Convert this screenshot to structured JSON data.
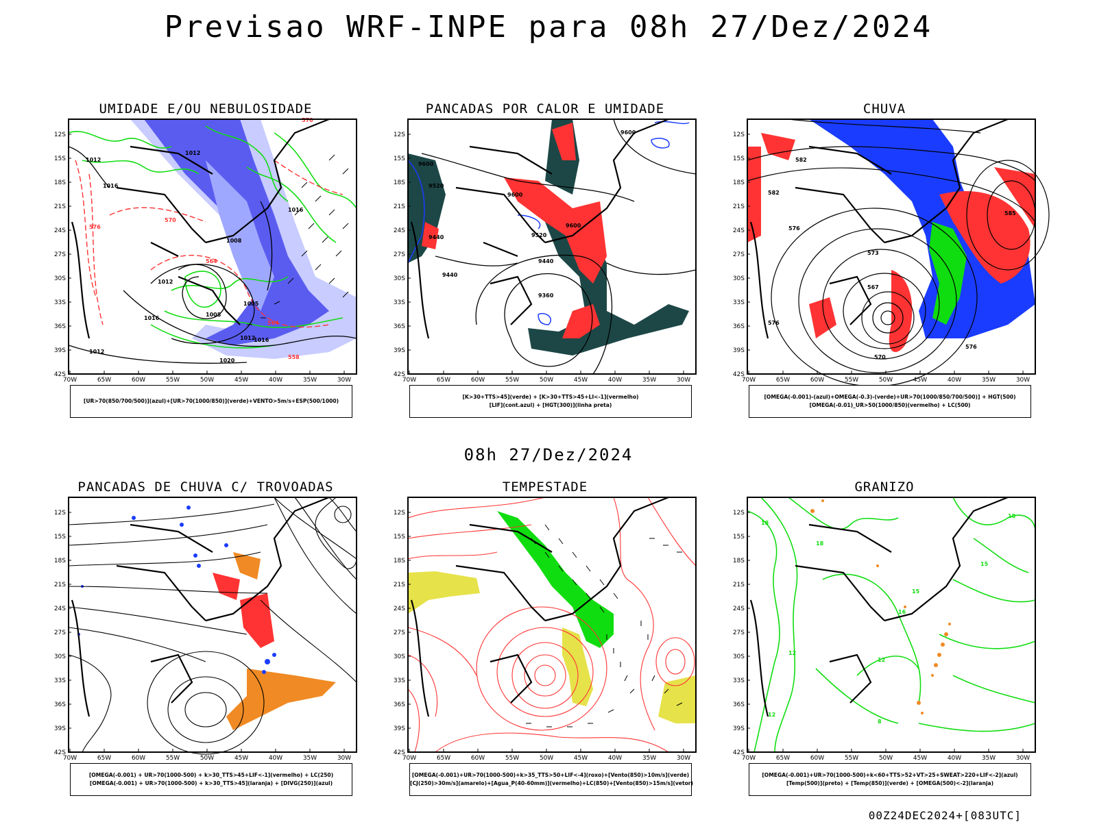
{
  "main_title": "Previsao WRF-INPE  para 08h 27/Dez/2024",
  "mid_title": "08h 27/Dez/2024",
  "footer": "00Z24DEC2024+[083UTC]",
  "axes": {
    "lat_labels": [
      "12S",
      "15S",
      "18S",
      "21S",
      "24S",
      "27S",
      "30S",
      "33S",
      "36S",
      "39S",
      "42S"
    ],
    "lon_labels": [
      "70W",
      "65W",
      "60W",
      "55W",
      "50W",
      "45W",
      "40W",
      "35W",
      "30W"
    ]
  },
  "colors": {
    "blue": "#1a3cff",
    "light_blue": "#9fa8ff",
    "lavender": "#c8ccff",
    "green": "#10dd10",
    "red": "#ff3333",
    "dark_teal": "#1d4747",
    "orange": "#f08a24",
    "yellow": "#e6e24a",
    "purple": "#8855ff"
  },
  "panels": [
    {
      "title": "UMIDADE E/OU NEBULOSIDADE",
      "legend": [
        "[UR>70(850/700/500)](azul)+[UR>70(1000/850)](verde)+VENTO>5m/s+ESP(500/1000)"
      ],
      "labels": [
        "1012",
        "1012",
        "1016",
        "1012",
        "1008",
        "1005",
        "1012",
        "1016",
        "1020",
        "1016",
        "1012",
        "1008",
        "1016",
        "570",
        "570",
        "576",
        "564",
        "564",
        "558"
      ]
    },
    {
      "title": "PANCADAS POR CALOR E UMIDADE",
      "legend": [
        "[K>30+TTS>45](verde) + [K>30+TTS>45+LI<-1](vermelho)",
        "[LIF](cont.azul) + [HGT(300)](linha preta)"
      ],
      "labels": [
        "9600",
        "9600",
        "9520",
        "9440",
        "9440",
        "9600",
        "9520",
        "9440",
        "9360",
        "9600"
      ]
    },
    {
      "title": "CHUVA",
      "legend": [
        "[OMEGA(-0.001)-(azul)+OMEGA(-0.3)-(verde)+UR>70(1000/850/700/500)] + HGT(500)",
        "[OMEGA(-0.01)_UR>50(1000/850)(vermelho) + LC(500)"
      ],
      "labels": [
        "582",
        "582",
        "576",
        "576",
        "573",
        "567",
        "570",
        "576",
        "585"
      ]
    },
    {
      "title": "PANCADAS DE CHUVA C/ TROVOADAS",
      "legend": [
        "[OMEGA(-0.001) + UR>70(1000-500) + k>30_TTS>45+LIF<-1](vermelho) + LC(250)",
        "[OMEGA(-0.001) + UR>70(1000-500) + k>30_TTS>45](laranja) + [DIVG(250)](azul)"
      ],
      "labels": []
    },
    {
      "title": "TEMPESTADE",
      "legend": [
        "[OMEGA(-0.001)+UR>70(1000-500)+k>35_TTS>50+LIF<-4](roxo)+[Vento(850)>10m/s](verde)",
        "[CJ(250)>30m/s](amarelo)+[Agua_P(40-60mm)](vermelho)+LC(850)+[Vento(850)>15m/s](vetor)"
      ],
      "labels": []
    },
    {
      "title": "GRANIZO",
      "legend": [
        "[OMEGA(-0.001)+UR>70(1000-500)+k<60+TTS>52+VT>25+SWEAT>220+LIF<-2](azul)",
        "[Temp(500)](preto) + [Temp(850)](verde) + [OMEGA(500)<-2](laranja)"
      ],
      "labels": [
        "18",
        "18",
        "16",
        "12",
        "15",
        "18",
        "12",
        "8",
        "12",
        "15"
      ]
    }
  ]
}
